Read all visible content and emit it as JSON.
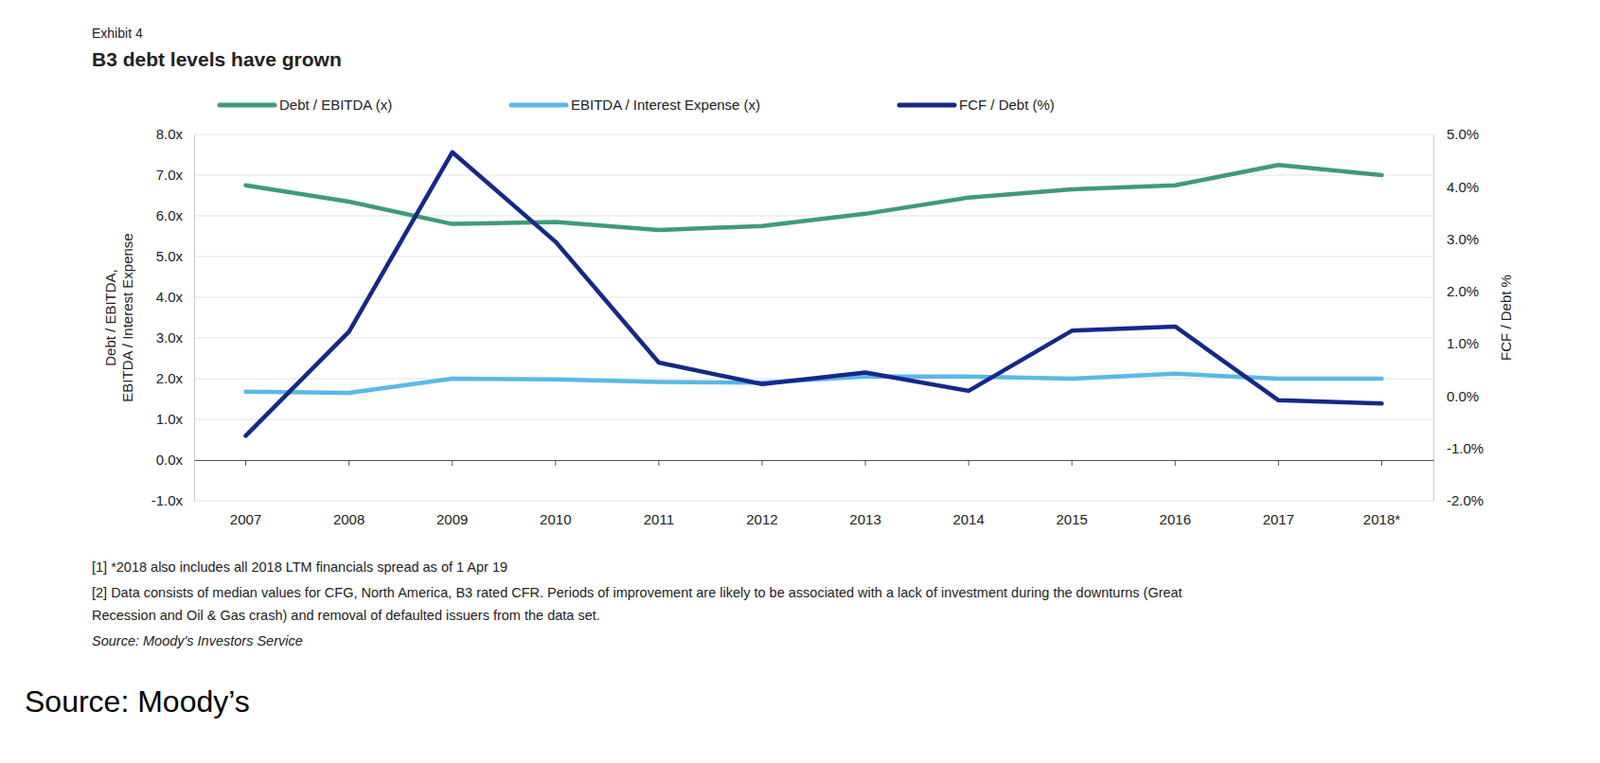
{
  "chart_data": {
    "type": "line",
    "subtitle": "Exhibit 4",
    "title": "B3 debt levels have grown",
    "ylabel": [
      "Debt / EBITDA,",
      "EBITDA / Interest Expense"
    ],
    "y2label": "FCF / Debt %",
    "categories": [
      "2007",
      "2008",
      "2009",
      "2010",
      "2011",
      "2012",
      "2013",
      "2014",
      "2015",
      "2016",
      "2017",
      "2018*"
    ],
    "series": [
      {
        "name": "Debt / EBITDA (x)",
        "color": "#3f9b78",
        "values": [
          6.75,
          6.35,
          5.8,
          5.85,
          5.65,
          5.75,
          6.05,
          6.45,
          6.65,
          6.75,
          7.25,
          7.0
        ]
      },
      {
        "name": "EBITDA / Interest Expense (x)",
        "color": "#5cb8e6",
        "values": [
          1.68,
          1.65,
          2.0,
          1.98,
          1.92,
          1.9,
          2.05,
          2.05,
          2.0,
          2.12,
          2.0,
          2.0
        ]
      },
      {
        "name": "FCF / Debt (%)",
        "color": "#15288a",
        "axis": "y2",
        "values": [
          -0.76,
          1.23,
          4.66,
          2.95,
          0.64,
          0.23,
          0.45,
          0.1,
          1.25,
          1.33,
          -0.08,
          -0.14
        ]
      }
    ],
    "ylim": [
      -1,
      8
    ],
    "yticks": [
      {
        "value": -1,
        "label": "-1.0x"
      },
      {
        "value": 0,
        "label": "0.0x"
      },
      {
        "value": 1,
        "label": "1.0x"
      },
      {
        "value": 2,
        "label": "2.0x"
      },
      {
        "value": 3,
        "label": "3.0x"
      },
      {
        "value": 4,
        "label": "4.0x"
      },
      {
        "value": 5,
        "label": "5.0x"
      },
      {
        "value": 6,
        "label": "6.0x"
      },
      {
        "value": 7,
        "label": "7.0x"
      },
      {
        "value": 8,
        "label": "8.0x"
      }
    ],
    "y2lim": [
      -2,
      5
    ],
    "y2ticks": [
      {
        "value": -2,
        "label": "-2.0%"
      },
      {
        "value": -1,
        "label": "-1.0%"
      },
      {
        "value": 0,
        "label": "0.0%"
      },
      {
        "value": 1,
        "label": "1.0%"
      },
      {
        "value": 2,
        "label": "2.0%"
      },
      {
        "value": 3,
        "label": "3.0%"
      },
      {
        "value": 4,
        "label": "4.0%"
      },
      {
        "value": 5,
        "label": "5.0%"
      }
    ],
    "grid": true,
    "legend": "top",
    "annotations": [
      "[1] *2018 also includes all 2018 LTM financials spread as of 1 Apr 19",
      "[2] Data consists of median values for CFG, North America, B3 rated CFR. Periods of improvement are likely to be associated with a lack of investment during the downturns (Great",
      "Recession and Oil & Gas crash) and removal of defaulted issuers from the data set.",
      "Source: Moody's Investors Service",
      "Source: Moody’s"
    ]
  }
}
